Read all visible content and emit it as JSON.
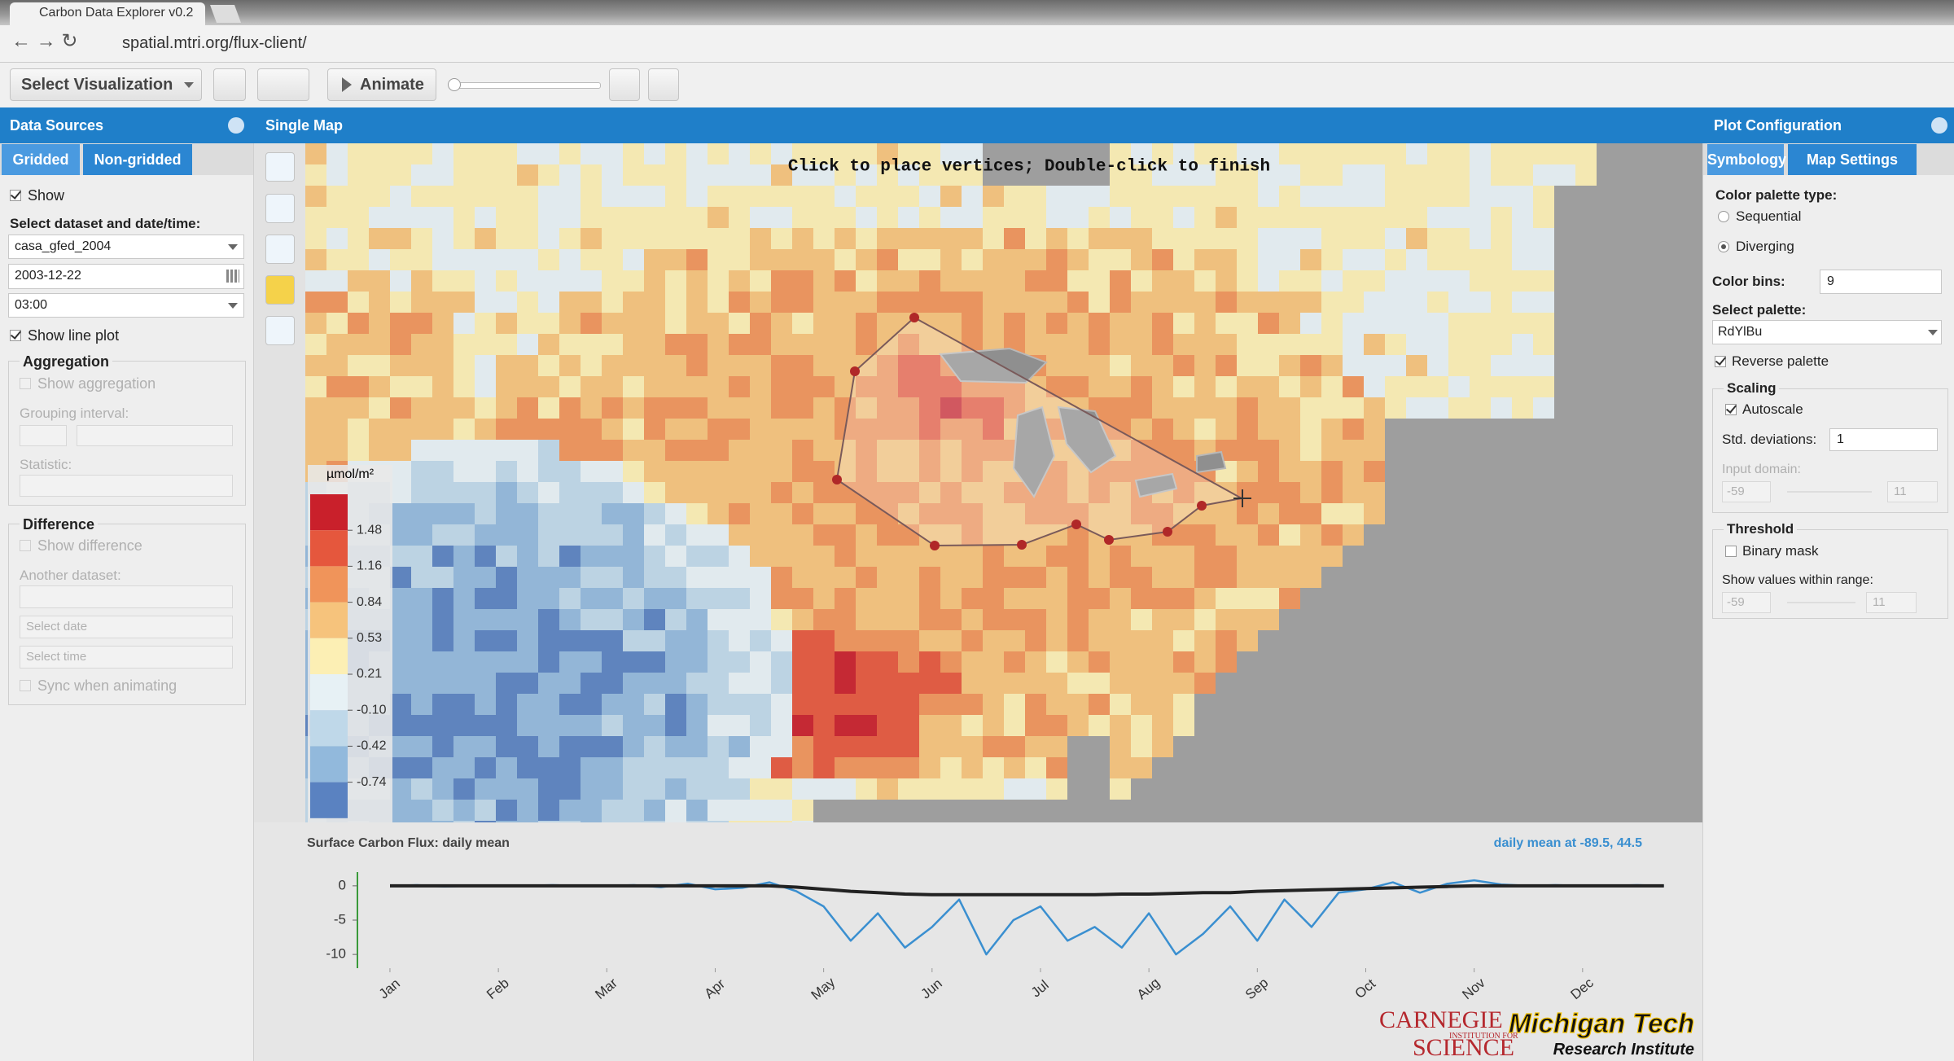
{
  "browser": {
    "tab_title": "Carbon Data Explorer v0.2",
    "url": "spatial.mtri.org/flux-client/"
  },
  "toolbar": {
    "select_visualization": "Select Visualization",
    "animate": "Animate"
  },
  "left_panel": {
    "title": "Data Sources",
    "tabs": [
      "Gridded",
      "Non-gridded"
    ],
    "show": "Show",
    "dataset_label": "Select dataset and date/time:",
    "dataset": "casa_gfed_2004",
    "date": "2003-12-22",
    "time": "03:00",
    "show_line_plot": "Show line plot",
    "aggregation": {
      "title": "Aggregation",
      "show": "Show aggregation",
      "grouping_interval": "Grouping interval:",
      "statistic": "Statistic:"
    },
    "difference": {
      "title": "Difference",
      "show": "Show difference",
      "another_dataset": "Another dataset:",
      "date_placeholder": "Select date",
      "time_placeholder": "Select time",
      "sync": "Sync when animating"
    }
  },
  "map": {
    "title": "Single Map",
    "instruction": "Click to place vertices; Double-click to finish",
    "legend": {
      "unit": "µmol/m²",
      "labels": [
        "1.48",
        "1.16",
        "0.84",
        "0.53",
        "0.21",
        "-0.10",
        "-0.42",
        "-0.74"
      ],
      "colors": [
        "#c9202b",
        "#e5573d",
        "#f0945a",
        "#f6c37c",
        "#fcefb4",
        "#e7f1f5",
        "#bfd8e9",
        "#92b9dc",
        "#5a82c1"
      ]
    }
  },
  "chart_data": {
    "type": "line",
    "title": "Surface Carbon Flux: daily mean",
    "subtitle": "daily mean at -89.5, 44.5",
    "x": [
      0,
      0.25,
      0.5,
      0.75,
      1,
      1.25,
      1.5,
      1.75,
      2,
      2.25,
      2.5,
      2.75,
      3,
      3.25,
      3.5,
      3.75,
      4,
      4.25,
      4.5,
      4.75,
      5,
      5.25,
      5.5,
      5.75,
      6,
      6.25,
      6.5,
      6.75,
      7,
      7.25,
      7.5,
      7.75,
      8,
      8.25,
      8.5,
      8.75,
      9,
      9.25,
      9.5,
      9.75,
      10,
      10.25,
      10.5,
      10.75,
      11,
      11.25,
      11.5,
      11.75
    ],
    "xlim": [
      -0.3,
      12
    ],
    "xticks": [
      {
        "value": 0,
        "label": "Jan"
      },
      {
        "value": 1,
        "label": "Feb"
      },
      {
        "value": 2,
        "label": "Mar"
      },
      {
        "value": 3,
        "label": "Apr"
      },
      {
        "value": 4,
        "label": "May"
      },
      {
        "value": 5,
        "label": "Jun"
      },
      {
        "value": 6,
        "label": "Jul"
      },
      {
        "value": 7,
        "label": "Aug"
      },
      {
        "value": 8,
        "label": "Sep"
      },
      {
        "value": 9,
        "label": "Oct"
      },
      {
        "value": 10,
        "label": "Nov"
      },
      {
        "value": 11,
        "label": "Dec"
      }
    ],
    "ylim": [
      -12,
      2
    ],
    "yticks": [
      0,
      -5,
      -10
    ],
    "series": [
      {
        "color": "#3a8fd0",
        "values": [
          0,
          0.1,
          -0.1,
          0,
          0,
          0,
          0.1,
          0,
          0,
          0.1,
          -0.2,
          0.3,
          -0.5,
          -0.3,
          0.5,
          -0.8,
          -3,
          -8,
          -4,
          -9,
          -6,
          -2,
          -10,
          -5,
          -3,
          -8,
          -6,
          -9,
          -4,
          -10,
          -7,
          -3,
          -8,
          -2,
          -6,
          -1,
          -0.5,
          0.5,
          -1,
          0.3,
          0.8,
          0.2,
          0,
          0.1,
          0,
          0,
          0.1,
          0
        ]
      },
      {
        "color": "#222222",
        "values": [
          0,
          0,
          0,
          0,
          0,
          0,
          0,
          0,
          0,
          0,
          0,
          0,
          0,
          0,
          0,
          -0.2,
          -0.5,
          -0.8,
          -1,
          -1.2,
          -1.3,
          -1.3,
          -1.3,
          -1.3,
          -1.3,
          -1.3,
          -1.3,
          -1.2,
          -1.2,
          -1.1,
          -1,
          -1,
          -0.8,
          -0.7,
          -0.6,
          -0.5,
          -0.4,
          -0.3,
          -0.2,
          -0.1,
          0,
          0,
          0,
          0,
          0,
          0,
          0,
          0
        ]
      }
    ]
  },
  "right_panel": {
    "title": "Plot Configuration",
    "tabs": [
      "Symbology",
      "Map Settings"
    ],
    "palette_type_label": "Color palette type:",
    "palette_types": [
      "Sequential",
      "Diverging"
    ],
    "color_bins_label": "Color bins:",
    "color_bins": "9",
    "palette_label": "Select palette:",
    "palette": "RdYlBu",
    "reverse_palette": "Reverse palette",
    "scaling": {
      "title": "Scaling",
      "autoscale": "Autoscale",
      "std_label": "Std. deviations:",
      "std": "1",
      "domain_label": "Input domain:",
      "domain_min": "-59",
      "domain_max": "11"
    },
    "threshold": {
      "title": "Threshold",
      "binary_mask": "Binary mask",
      "range_label": "Show values within range:",
      "range_min": "-59",
      "range_max": "11"
    }
  },
  "logos": {
    "carnegie": [
      "CARNEGIE",
      "INSTITUTION FOR",
      "SCIENCE"
    ],
    "mtri": [
      "Michigan Tech",
      "Research Institute"
    ]
  }
}
